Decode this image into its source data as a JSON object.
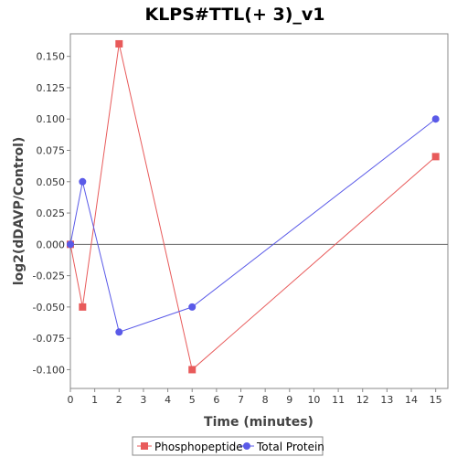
{
  "chart_data": {
    "type": "line",
    "title": "KLPS#TTL(+ 3)_v1",
    "xlabel": "Time (minutes)",
    "ylabel": "log2(dDAVP/Control)",
    "xlim": [
      0,
      15.5
    ],
    "ylim": [
      -0.115,
      0.168
    ],
    "x_ticks": [
      0,
      1,
      2,
      3,
      4,
      5,
      6,
      7,
      8,
      9,
      10,
      11,
      12,
      13,
      14,
      15
    ],
    "y_ticks": [
      -0.1,
      -0.075,
      -0.05,
      -0.025,
      0.0,
      0.025,
      0.05,
      0.075,
      0.1,
      0.125,
      0.15
    ],
    "y_tick_labels": [
      "-0.100",
      "-0.075",
      "-0.050",
      "-0.025",
      "0.000",
      "0.025",
      "0.050",
      "0.075",
      "0.100",
      "0.125",
      "0.150"
    ],
    "zero_line": true,
    "grid": false,
    "legend_position": "bottom",
    "series": [
      {
        "name": "Phosphopeptide",
        "color": "#e85a5a",
        "marker": "square",
        "points": [
          {
            "x": 0,
            "y": 0.0
          },
          {
            "x": 0.5,
            "y": -0.05
          },
          {
            "x": 2,
            "y": 0.16
          },
          {
            "x": 5,
            "y": -0.1
          },
          {
            "x": 15,
            "y": 0.07
          }
        ]
      },
      {
        "name": "Total Protein",
        "color": "#5a5ae8",
        "marker": "circle",
        "points": [
          {
            "x": 0,
            "y": 0.0
          },
          {
            "x": 0.5,
            "y": 0.05
          },
          {
            "x": 2,
            "y": -0.07
          },
          {
            "x": 5,
            "y": -0.05
          },
          {
            "x": 15,
            "y": 0.1
          }
        ]
      }
    ]
  }
}
